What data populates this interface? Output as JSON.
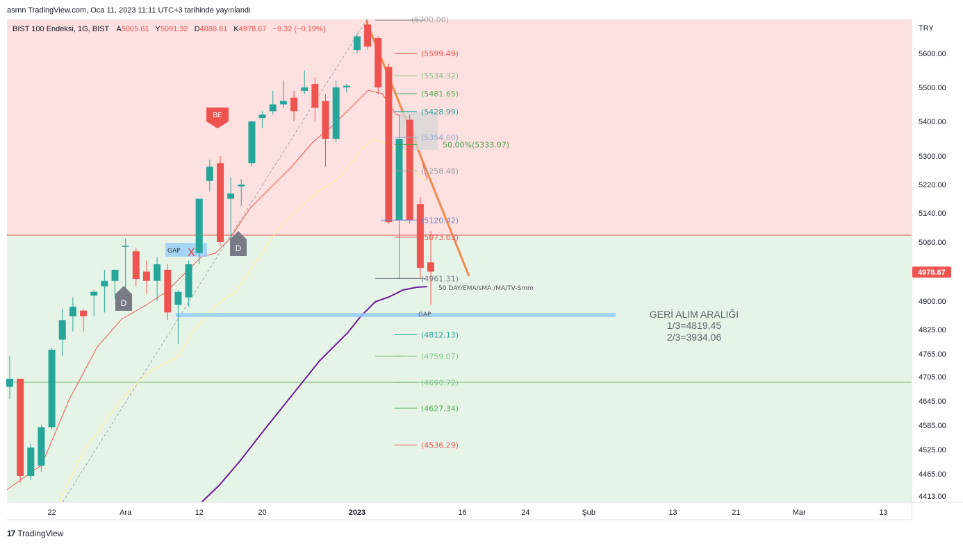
{
  "caption": "asrnn TradingView.com, Oca 11, 2023 11:11 UTC+3 tarihinde yayınlandı",
  "legend": {
    "symbol": "BIST 100 Endeksi, 1G, BIST",
    "o_label": "A",
    "o_value": "5005.61",
    "h_label": "Y",
    "h_value": "5091.32",
    "l_label": "D",
    "l_value": "4888.61",
    "c_label": "K",
    "c_value": "4978.67",
    "change": "−9.32 (−0.19%)"
  },
  "currency": "TRY",
  "last_price_label": "4978.67",
  "colors": {
    "up": "#26a69a",
    "down": "#ef5350",
    "zone_top": "#fde0e0",
    "zone_bottom": "#e6f4e8",
    "fib_trend": "#9aa0a6",
    "ema_red": "#ef5350",
    "ema_yellow": "#fff59d",
    "sma_purple": "#6a1b9a",
    "down_trend": "#f08a4b",
    "gap_fill": "#90caf9"
  },
  "footer_brand": "TradingView",
  "chart_data": {
    "type": "candlestick",
    "title": "BIST 100 Endeksi, 1G, BIST",
    "y_axis": {
      "ticks": [
        {
          "label": "5600.00",
          "v": 5600
        },
        {
          "label": "5500.00",
          "v": 5500
        },
        {
          "label": "5400.00",
          "v": 5400
        },
        {
          "label": "5300.00",
          "v": 5300
        },
        {
          "label": "5220.00",
          "v": 5220
        },
        {
          "label": "5140.00",
          "v": 5140
        },
        {
          "label": "5060.00",
          "v": 5060
        },
        {
          "label": "4900.00",
          "v": 4900
        },
        {
          "label": "4825.00",
          "v": 4825
        },
        {
          "label": "4765.00",
          "v": 4765
        },
        {
          "label": "4705.00",
          "v": 4705
        },
        {
          "label": "4645.00",
          "v": 4645
        },
        {
          "label": "4585.00",
          "v": 4585
        },
        {
          "label": "4525.00",
          "v": 4525
        },
        {
          "label": "4465.00",
          "v": 4465
        },
        {
          "label": "4413.00",
          "v": 4413
        }
      ]
    },
    "x_axis": {
      "ticks": [
        {
          "label": "22",
          "i": 4
        },
        {
          "label": "Ara",
          "i": 11
        },
        {
          "label": "12",
          "i": 18
        },
        {
          "label": "20",
          "i": 24
        },
        {
          "label": "2023",
          "i": 33
        },
        {
          "label": "16",
          "i": 43
        },
        {
          "label": "24",
          "i": 49
        },
        {
          "label": "Şub",
          "i": 55
        },
        {
          "label": "13",
          "i": 63
        },
        {
          "label": "21",
          "i": 69
        },
        {
          "label": "Mar",
          "i": 75
        },
        {
          "label": "13",
          "i": 83
        }
      ]
    },
    "candles": [
      {
        "o": 4680,
        "h": 4760,
        "l": 4650,
        "c": 4700
      },
      {
        "o": 4700,
        "h": 4700,
        "l": 4445,
        "c": 4460
      },
      {
        "o": 4460,
        "h": 4540,
        "l": 4450,
        "c": 4530
      },
      {
        "o": 4485,
        "h": 4585,
        "l": 4470,
        "c": 4580
      },
      {
        "o": 4580,
        "h": 4780,
        "l": 4575,
        "c": 4775
      },
      {
        "o": 4800,
        "h": 4880,
        "l": 4760,
        "c": 4850
      },
      {
        "o": 4860,
        "h": 4910,
        "l": 4820,
        "c": 4885
      },
      {
        "o": 4875,
        "h": 4880,
        "l": 4820,
        "c": 4860
      },
      {
        "o": 4915,
        "h": 4930,
        "l": 4860,
        "c": 4925
      },
      {
        "o": 4940,
        "h": 4985,
        "l": 4870,
        "c": 4955
      },
      {
        "o": 4955,
        "h": 4985,
        "l": 4905,
        "c": 4985
      },
      {
        "o": 5050,
        "h": 5070,
        "l": 4920,
        "c": 5050
      },
      {
        "o": 5035,
        "h": 5045,
        "l": 4940,
        "c": 4960
      },
      {
        "o": 4980,
        "h": 5010,
        "l": 4920,
        "c": 4955
      },
      {
        "o": 4955,
        "h": 5020,
        "l": 4900,
        "c": 5000
      },
      {
        "o": 4985,
        "h": 5000,
        "l": 4850,
        "c": 4870
      },
      {
        "o": 4890,
        "h": 4930,
        "l": 4790,
        "c": 4925
      },
      {
        "o": 4910,
        "h": 5010,
        "l": 4885,
        "c": 5000
      },
      {
        "o": 5030,
        "h": 5180,
        "l": 5000,
        "c": 5180
      },
      {
        "o": 5230,
        "h": 5290,
        "l": 5200,
        "c": 5270
      },
      {
        "o": 5280,
        "h": 5300,
        "l": 5050,
        "c": 5060
      },
      {
        "o": 5180,
        "h": 5240,
        "l": 5070,
        "c": 5195
      },
      {
        "o": 5215,
        "h": 5235,
        "l": 5160,
        "c": 5220
      },
      {
        "o": 5280,
        "h": 5400,
        "l": 5270,
        "c": 5400
      },
      {
        "o": 5410,
        "h": 5430,
        "l": 5380,
        "c": 5420
      },
      {
        "o": 5430,
        "h": 5490,
        "l": 5420,
        "c": 5450
      },
      {
        "o": 5450,
        "h": 5520,
        "l": 5440,
        "c": 5460
      },
      {
        "o": 5470,
        "h": 5490,
        "l": 5400,
        "c": 5430
      },
      {
        "o": 5490,
        "h": 5550,
        "l": 5480,
        "c": 5500
      },
      {
        "o": 5510,
        "h": 5530,
        "l": 5400,
        "c": 5440
      },
      {
        "o": 5460,
        "h": 5480,
        "l": 5270,
        "c": 5350
      },
      {
        "o": 5350,
        "h": 5520,
        "l": 5340,
        "c": 5500
      },
      {
        "o": 5500,
        "h": 5510,
        "l": 5485,
        "c": 5505
      },
      {
        "o": 5610,
        "h": 5660,
        "l": 5600,
        "c": 5650
      },
      {
        "o": 5685,
        "h": 5700,
        "l": 5610,
        "c": 5620
      },
      {
        "o": 5645,
        "h": 5650,
        "l": 5480,
        "c": 5500
      },
      {
        "o": 5560,
        "h": 5570,
        "l": 5110,
        "c": 5115
      },
      {
        "o": 5120,
        "h": 5420,
        "l": 4960,
        "c": 5350
      },
      {
        "o": 5405,
        "h": 5420,
        "l": 5110,
        "c": 5120
      },
      {
        "o": 5165,
        "h": 5185,
        "l": 4960,
        "c": 4990
      },
      {
        "o": 5005,
        "h": 5090,
        "l": 4890,
        "c": 4980
      }
    ],
    "levels": [
      {
        "label": "(5599.49)",
        "v": 5599.49,
        "color": "#ef5350"
      },
      {
        "label": "(5534.32)",
        "v": 5534.32,
        "color": "#81c784"
      },
      {
        "label": "(5481.65)",
        "v": 5481.65,
        "color": "#4caf50"
      },
      {
        "label": "(5428.99)",
        "v": 5428.99,
        "color": "#26a69a"
      },
      {
        "label": "(5354.00)",
        "v": 5354.0,
        "color": "#90a4d8"
      },
      {
        "label": "50.00%(5333.07)",
        "v": 5333.07,
        "color": "#43a047"
      },
      {
        "label": "(5258.48)",
        "v": 5258.48,
        "color": "#9e9e9e"
      },
      {
        "label": "(5120.42)",
        "v": 5120.42,
        "color": "#7986cb"
      },
      {
        "label": "(5073.63)",
        "v": 5073.63,
        "color": "#ef5350"
      },
      {
        "label": "(4961.31)",
        "v": 4961.31,
        "color": "#787b86"
      },
      {
        "label": "(4812.13)",
        "v": 4812.13,
        "color": "#26a69a"
      },
      {
        "label": "(4759.07)",
        "v": 4759.07,
        "color": "#81c784"
      },
      {
        "label": "(4690.72)",
        "v": 4690.72,
        "color": "#81c784"
      },
      {
        "label": "(4627.34)",
        "v": 4627.34,
        "color": "#4caf50"
      },
      {
        "label": "(4536.29)",
        "v": 4536.29,
        "color": "#ef5350"
      }
    ],
    "top_level_label": "(5700.00)",
    "ma_label": "50 DAY/EMA/sMA /MA/TV-Smm",
    "gap_label": "GAP",
    "gap_label_small": "GAP",
    "x_marker": "X",
    "be_marker": "BE",
    "d_marker": "D",
    "retrace_title": "GERİ ALIM ARALIĞI",
    "retrace_line1": "1/3=4819,45",
    "retrace_line2": "2/3=3934,06"
  }
}
